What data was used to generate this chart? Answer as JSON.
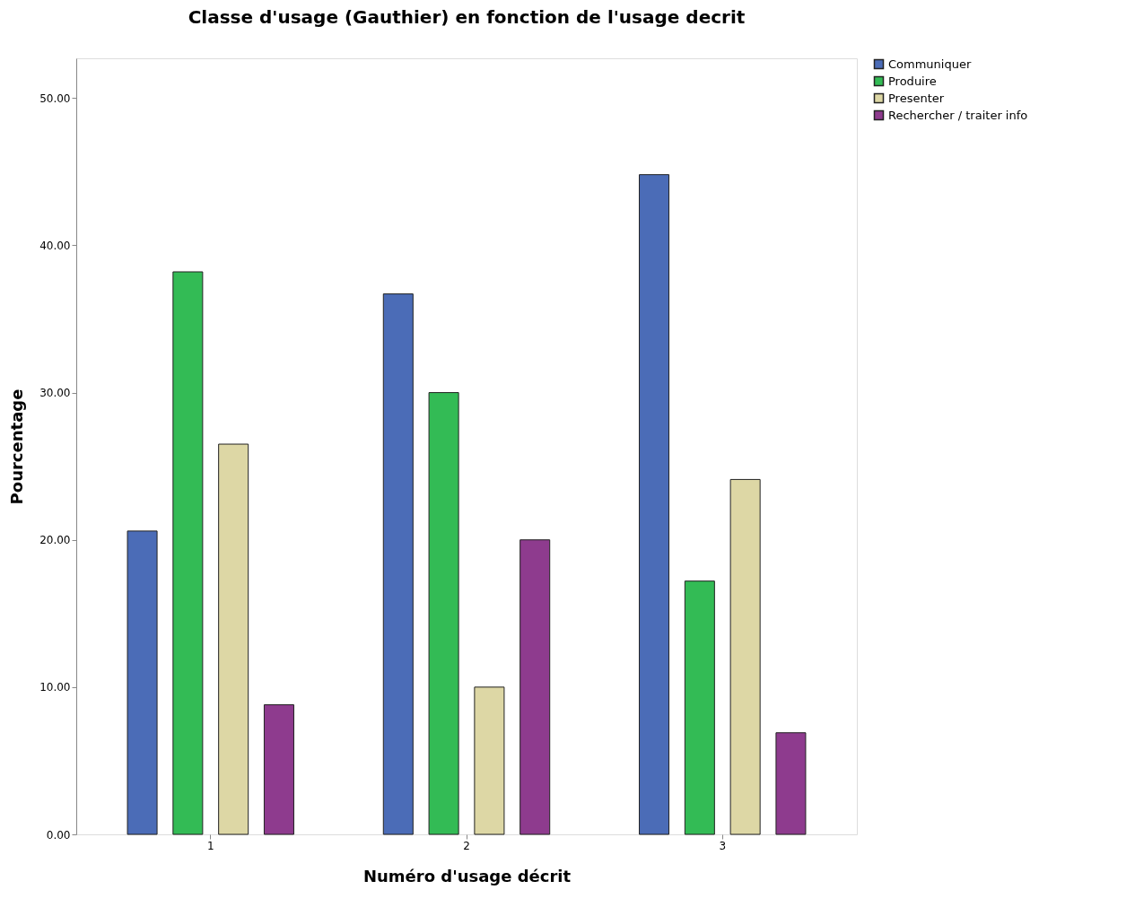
{
  "chart_data": {
    "type": "bar",
    "title": "Classe d'usage (Gauthier) en fonction de l'usage decrit",
    "xlabel": "Numéro d'usage décrit",
    "ylabel": "Pourcentage",
    "categories": [
      "1",
      "2",
      "3"
    ],
    "series": [
      {
        "name": "Communiquer",
        "color": "#4b6cb7",
        "values": [
          20.6,
          36.7,
          44.8
        ]
      },
      {
        "name": "Produire",
        "color": "#33bb55",
        "values": [
          38.2,
          30.0,
          17.2
        ]
      },
      {
        "name": "Presenter",
        "color": "#ddd7a5",
        "values": [
          26.5,
          10.0,
          24.1
        ]
      },
      {
        "name": "Rechercher / traiter info",
        "color": "#8e3b8e",
        "values": [
          8.8,
          20.0,
          6.9
        ]
      }
    ],
    "ylim": [
      0,
      52.7
    ],
    "yticks": [
      {
        "value": 0,
        "label": "0.00"
      },
      {
        "value": 10,
        "label": "10.00"
      },
      {
        "value": 20,
        "label": "20.00"
      },
      {
        "value": 30,
        "label": "30.00"
      },
      {
        "value": 40,
        "label": "40.00"
      },
      {
        "value": 50,
        "label": "50.00"
      }
    ],
    "grid": false,
    "legend": "top right"
  }
}
